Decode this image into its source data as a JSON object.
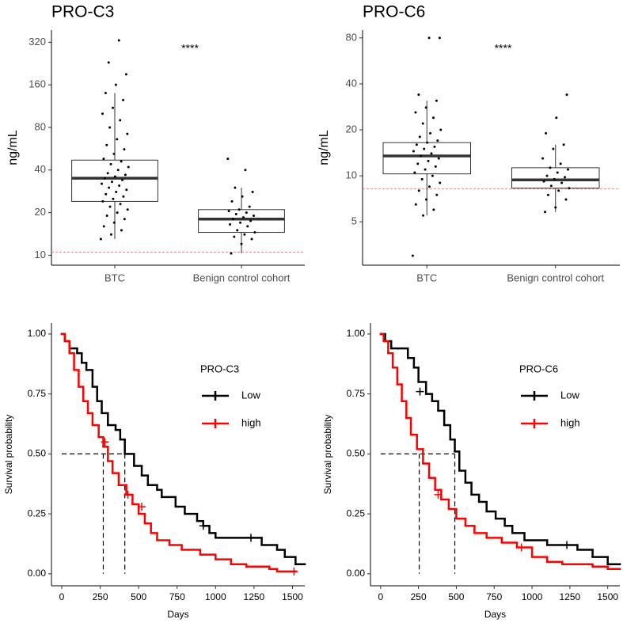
{
  "chart_data": [
    {
      "type": "box",
      "title": "PRO-C3",
      "ylabel": "ng/mL",
      "log_scale": true,
      "annotation": "****",
      "categories": [
        "BTC",
        "Benign control cohort"
      ],
      "boxes": [
        {
          "q1": 24,
          "median": 35,
          "q3": 47,
          "whisker_low": 13,
          "whisker_high": 140
        },
        {
          "q1": 14.5,
          "median": 18,
          "q3": 21,
          "whisker_low": 10.3,
          "whisker_high": 30
        }
      ],
      "points": [
        [
          13,
          14,
          15,
          16,
          17,
          18,
          19,
          20,
          21,
          22,
          23,
          24,
          25,
          26,
          27,
          28,
          29,
          30,
          31,
          32,
          33,
          34,
          35,
          36,
          37,
          38,
          40,
          42,
          44,
          46,
          48,
          52,
          56,
          60,
          66,
          72,
          80,
          90,
          100,
          110,
          125,
          140,
          160,
          190,
          230,
          330
        ],
        [
          10.3,
          12,
          13,
          13.5,
          14,
          14.5,
          15,
          16,
          16.5,
          17,
          17.5,
          18,
          18.5,
          19,
          19.5,
          20,
          20.5,
          21,
          22,
          24,
          26,
          28,
          30,
          40,
          48
        ]
      ],
      "reference_line": 10.5,
      "reference_color": "#e06666",
      "box_color": "#333333",
      "point_color": "#000000",
      "ylim": [
        8.5,
        390
      ],
      "yticks": [
        10,
        20,
        40,
        80,
        160,
        320
      ]
    },
    {
      "type": "box",
      "title": "PRO-C6",
      "ylabel": "ng/mL",
      "log_scale": true,
      "annotation": "****",
      "categories": [
        "BTC",
        "Benign control cohort"
      ],
      "boxes": [
        {
          "q1": 10.3,
          "median": 13.5,
          "q3": 16.5,
          "whisker_low": 5.5,
          "whisker_high": 31
        },
        {
          "q1": 8.3,
          "median": 9.4,
          "q3": 11.3,
          "whisker_low": 5.8,
          "whisker_high": 16
        }
      ],
      "points": [
        [
          3,
          5.5,
          6,
          6.5,
          7,
          7.5,
          8,
          8.5,
          9,
          9.5,
          10,
          10.5,
          11,
          11.5,
          12,
          12.5,
          13,
          13.5,
          14,
          14.5,
          15,
          15.5,
          16,
          16.5,
          17,
          18,
          19,
          20,
          22,
          24,
          26,
          28,
          31,
          34,
          80,
          80
        ],
        [
          5.8,
          6.2,
          7,
          7.5,
          8,
          8.3,
          8.6,
          9,
          9.2,
          9.5,
          9.8,
          10,
          10.5,
          11,
          11.3,
          12,
          13,
          15,
          16,
          19,
          24,
          34
        ]
      ],
      "reference_line": 8.2,
      "reference_color": "#e06666",
      "box_color": "#333333",
      "point_color": "#000000",
      "ylim": [
        2.6,
        90
      ],
      "yticks": [
        5,
        10,
        20,
        40,
        80
      ]
    },
    {
      "type": "km",
      "xlabel": "Days",
      "ylabel": "Survival probability",
      "legend_title": "PRO-C3",
      "legend_position": "right",
      "series": [
        {
          "name": "Low",
          "color": "#000000",
          "times": [
            0,
            20,
            50,
            100,
            130,
            160,
            200,
            230,
            260,
            300,
            350,
            380,
            410,
            470,
            520,
            560,
            620,
            650,
            740,
            800,
            880,
            920,
            960,
            1000,
            1300,
            1400,
            1450,
            1520,
            1580
          ],
          "values": [
            1,
            0.97,
            0.94,
            0.92,
            0.88,
            0.85,
            0.78,
            0.72,
            0.67,
            0.62,
            0.6,
            0.56,
            0.5,
            0.45,
            0.41,
            0.37,
            0.35,
            0.32,
            0.28,
            0.25,
            0.22,
            0.2,
            0.17,
            0.15,
            0.12,
            0.1,
            0.07,
            0.04,
            0.04
          ],
          "censor_times": [
            920,
            1230
          ],
          "censor_values": [
            0.2,
            0.15
          ]
        },
        {
          "name": "high",
          "color": "#ff0000",
          "times": [
            0,
            20,
            50,
            80,
            110,
            140,
            170,
            200,
            240,
            270,
            300,
            330,
            370,
            420,
            460,
            500,
            540,
            580,
            620,
            700,
            780,
            900,
            1000,
            1100,
            1200,
            1350,
            1400,
            1520
          ],
          "values": [
            1,
            0.97,
            0.92,
            0.85,
            0.78,
            0.72,
            0.67,
            0.62,
            0.57,
            0.53,
            0.47,
            0.42,
            0.37,
            0.33,
            0.29,
            0.25,
            0.21,
            0.17,
            0.14,
            0.12,
            0.1,
            0.08,
            0.06,
            0.04,
            0.03,
            0.02,
            0.01,
            0.01
          ],
          "censor_times": [
            280,
            430,
            520,
            1510
          ],
          "censor_values": [
            0.55,
            0.33,
            0.28,
            0.01
          ]
        }
      ],
      "median_y": 0.5,
      "median_x": [
        270,
        410
      ],
      "xlim": [
        -67,
        1580
      ],
      "xticks": [
        0,
        250,
        500,
        750,
        1000,
        1250,
        1500
      ],
      "ylim": [
        -0.05,
        1.046
      ],
      "yticks": [
        {
          "value": 0,
          "label": "0.00"
        },
        {
          "value": 0.25,
          "label": "0.25"
        },
        {
          "value": 0.5,
          "label": "0.50"
        },
        {
          "value": 0.75,
          "label": "0.75"
        },
        {
          "value": 1,
          "label": "1.00"
        }
      ]
    },
    {
      "type": "km",
      "xlabel": "Days",
      "ylabel": "Survival probability",
      "legend_title": "PRO-C6",
      "legend_position": "right",
      "series": [
        {
          "name": "Low",
          "color": "#000000",
          "times": [
            0,
            30,
            70,
            180,
            220,
            250,
            300,
            340,
            380,
            420,
            460,
            490,
            520,
            560,
            600,
            650,
            700,
            760,
            820,
            870,
            950,
            1100,
            1300,
            1400,
            1500,
            1580
          ],
          "values": [
            1,
            0.97,
            0.94,
            0.9,
            0.86,
            0.8,
            0.75,
            0.72,
            0.68,
            0.62,
            0.56,
            0.51,
            0.43,
            0.38,
            0.33,
            0.3,
            0.26,
            0.23,
            0.2,
            0.17,
            0.14,
            0.12,
            0.1,
            0.07,
            0.04,
            0.04
          ],
          "censor_times": [
            260,
            1230
          ],
          "censor_values": [
            0.76,
            0.12
          ]
        },
        {
          "name": "high",
          "color": "#ff0000",
          "times": [
            0,
            20,
            50,
            80,
            110,
            140,
            170,
            200,
            240,
            280,
            320,
            360,
            400,
            450,
            500,
            560,
            620,
            700,
            800,
            900,
            1000,
            1100,
            1200,
            1400,
            1500,
            1580
          ],
          "values": [
            1,
            0.97,
            0.92,
            0.86,
            0.79,
            0.72,
            0.65,
            0.58,
            0.52,
            0.46,
            0.4,
            0.35,
            0.31,
            0.27,
            0.23,
            0.2,
            0.17,
            0.15,
            0.13,
            0.11,
            0.07,
            0.05,
            0.04,
            0.03,
            0.02,
            0.02
          ],
          "censor_times": [
            380,
            930
          ],
          "censor_values": [
            0.33,
            0.11
          ]
        }
      ],
      "median_y": 0.5,
      "median_x": [
        255,
        490
      ],
      "xlim": [
        -67,
        1580
      ],
      "xticks": [
        0,
        250,
        500,
        750,
        1000,
        1250,
        1500
      ],
      "ylim": [
        -0.05,
        1.046
      ],
      "yticks": [
        {
          "value": 0,
          "label": "0.00"
        },
        {
          "value": 0.25,
          "label": "0.25"
        },
        {
          "value": 0.5,
          "label": "0.50"
        },
        {
          "value": 0.75,
          "label": "0.75"
        },
        {
          "value": 1,
          "label": "1.00"
        }
      ]
    }
  ]
}
